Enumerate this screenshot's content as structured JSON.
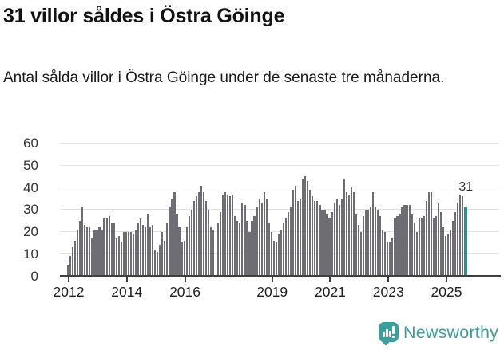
{
  "header": {
    "title": "31 villor såldes i Östra Göinge",
    "subtitle": "Antal sålda villor i Östra Göinge under de senaste tre månaderna."
  },
  "branding": {
    "label": "Newsworthy",
    "icon": "newsworthy-speech-bubble-chart-icon"
  },
  "colors": {
    "bar": "#6d6d73",
    "highlight": "#2f8c90",
    "brand": "#3f9e99",
    "gridline": "#e3e3e3",
    "axis": "#3f3f3f",
    "text": "#1a1a1a"
  },
  "chart_data": {
    "type": "bar",
    "title": "31 villor såldes i Östra Göinge",
    "xlabel": "",
    "ylabel": "",
    "ylim": [
      0,
      60
    ],
    "y_ticks": [
      0,
      10,
      20,
      30,
      40,
      50,
      60
    ],
    "grid": "on",
    "legend": "none",
    "x_tick_years": [
      2012,
      2014,
      2016,
      2019,
      2021,
      2023,
      2025
    ],
    "series_note": "monthly bars, rolling 3-month sums of sold villas, Jan 2012 onward; 0 = gap/missing month",
    "series": [
      {
        "year": 2012,
        "values": [
          5,
          9,
          13,
          16,
          21,
          25,
          31,
          23,
          22,
          22,
          17,
          21
        ]
      },
      {
        "year": 2013,
        "values": [
          21,
          22,
          21,
          26,
          26,
          27,
          24,
          24,
          17,
          18,
          15,
          20
        ]
      },
      {
        "year": 2014,
        "values": [
          20,
          20,
          20,
          19,
          21,
          24,
          26,
          23,
          22,
          28,
          22,
          23
        ]
      },
      {
        "year": 2015,
        "values": [
          12,
          11,
          14,
          20,
          16,
          24,
          31,
          35,
          38,
          28,
          22,
          15
        ]
      },
      {
        "year": 2016,
        "values": [
          16,
          22,
          27,
          30,
          34,
          36,
          38,
          41,
          38,
          34,
          30,
          22
        ]
      },
      {
        "year": 2017,
        "values": [
          21,
          0,
          24,
          29,
          37,
          38,
          37,
          36,
          37,
          27,
          25,
          24
        ]
      },
      {
        "year": 2018,
        "values": [
          33,
          32,
          25,
          20,
          25,
          27,
          31,
          35,
          33,
          38,
          35,
          24
        ]
      },
      {
        "year": 2019,
        "values": [
          20,
          16,
          15,
          19,
          21,
          24,
          26,
          29,
          31,
          39,
          41,
          34
        ]
      },
      {
        "year": 2020,
        "values": [
          35,
          44,
          45,
          43,
          39,
          36,
          34,
          34,
          32,
          30,
          30,
          28
        ]
      },
      {
        "year": 2021,
        "values": [
          26,
          29,
          33,
          35,
          32,
          35,
          44,
          38,
          37,
          40,
          38,
          28
        ]
      },
      {
        "year": 2022,
        "values": [
          23,
          20,
          27,
          30,
          30,
          31,
          38,
          31,
          30,
          27,
          21,
          20
        ]
      },
      {
        "year": 2023,
        "values": [
          15,
          15,
          17,
          26,
          27,
          28,
          31,
          32,
          32,
          32,
          28,
          24
        ]
      },
      {
        "year": 2024,
        "values": [
          20,
          26,
          26,
          27,
          34,
          38,
          38,
          26,
          27,
          33,
          29,
          22
        ]
      },
      {
        "year": 2025,
        "values": [
          18,
          19,
          21,
          25,
          29,
          33,
          37,
          36
        ]
      }
    ],
    "highlight_bar": {
      "label": "31",
      "value": 31,
      "position": "last"
    }
  }
}
